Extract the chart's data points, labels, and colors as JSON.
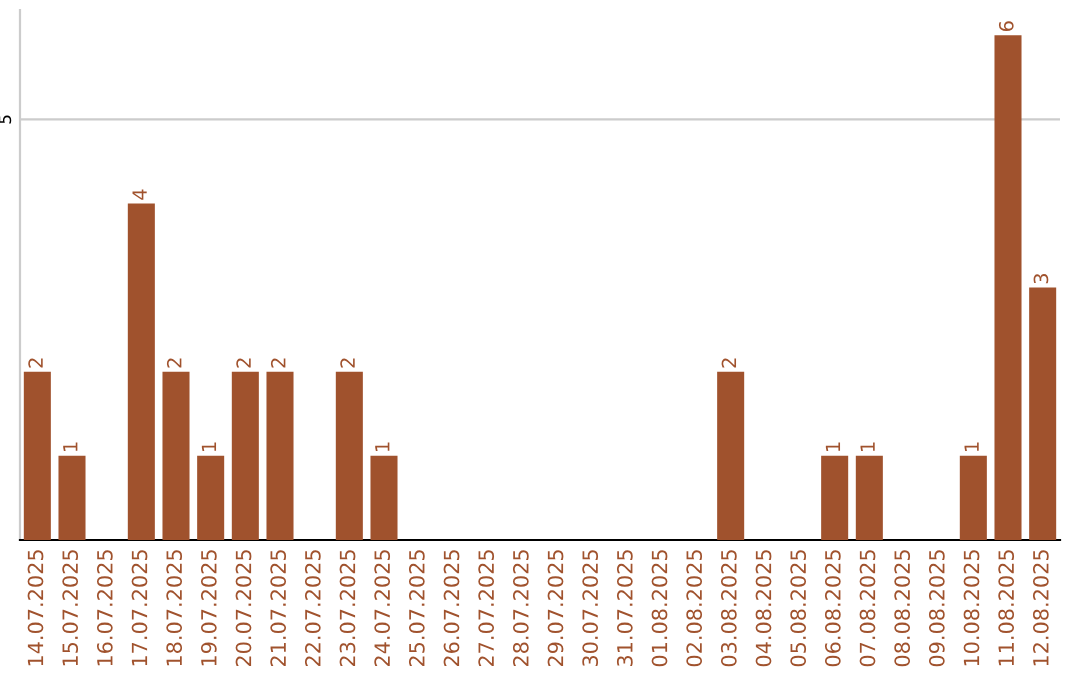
{
  "chart_data": {
    "type": "bar",
    "categories": [
      "14.07.2025",
      "15.07.2025",
      "16.07.2025",
      "17.07.2025",
      "18.07.2025",
      "19.07.2025",
      "20.07.2025",
      "21.07.2025",
      "22.07.2025",
      "23.07.2025",
      "24.07.2025",
      "25.07.2025",
      "26.07.2025",
      "27.07.2025",
      "28.07.2025",
      "29.07.2025",
      "30.07.2025",
      "31.07.2025",
      "01.08.2025",
      "02.08.2025",
      "03.08.2025",
      "04.08.2025",
      "05.08.2025",
      "06.08.2025",
      "07.08.2025",
      "08.08.2025",
      "09.08.2025",
      "10.08.2025",
      "11.08.2025",
      "12.08.2025"
    ],
    "values": [
      2,
      1,
      0,
      4,
      2,
      1,
      2,
      2,
      0,
      2,
      1,
      0,
      0,
      0,
      0,
      0,
      0,
      0,
      0,
      0,
      2,
      0,
      0,
      1,
      1,
      0,
      0,
      1,
      6,
      3
    ],
    "value_labels": [
      "2",
      "1",
      null,
      "4",
      "2",
      "1",
      "2",
      "2",
      null,
      "2",
      "1",
      null,
      null,
      null,
      null,
      null,
      null,
      null,
      null,
      null,
      "2",
      null,
      null,
      "1",
      "1",
      null,
      null,
      "1",
      "6",
      "3"
    ],
    "color": "#a0522d",
    "ylim": [
      0,
      6.3
    ],
    "yticks": [
      5
    ],
    "grid": "y"
  }
}
